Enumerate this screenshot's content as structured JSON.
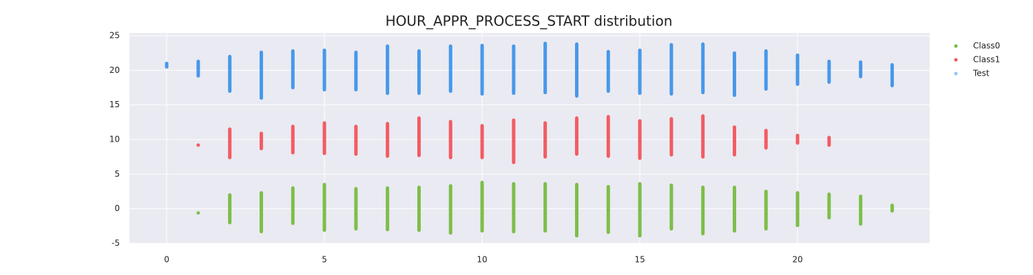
{
  "chart_data": {
    "type": "strip",
    "title": "HOUR_APPR_PROCESS_START distribution",
    "xlim": [
      -1.18,
      24.19
    ],
    "ylim": [
      -5,
      25.4
    ],
    "xticks": [
      0,
      5,
      10,
      15,
      20
    ],
    "yticks": [
      -5,
      0,
      5,
      10,
      15,
      20,
      25
    ],
    "grid": true,
    "legend": "outside-right",
    "series": [
      {
        "name": "Class0",
        "color": "#77bc3f",
        "x": [
          0,
          1,
          2,
          3,
          4,
          5,
          6,
          7,
          8,
          9,
          10,
          11,
          12,
          13,
          14,
          15,
          16,
          17,
          18,
          19,
          20,
          21,
          22,
          23
        ],
        "low": [
          null,
          -0.6,
          -2,
          -3.3,
          -2.1,
          -3.1,
          -2.9,
          -3,
          -3.1,
          -3.5,
          -3.2,
          -3.3,
          -3.2,
          -3.9,
          -3.4,
          -3.9,
          -2.9,
          -3.6,
          -3.2,
          -2.9,
          -2.4,
          -1.3,
          -2.2,
          -0.3
        ],
        "high": [
          null,
          -0.6,
          2,
          2.3,
          3,
          3.5,
          2.9,
          3,
          3.1,
          3.3,
          3.8,
          3.6,
          3.6,
          3.5,
          3.2,
          3.6,
          3.4,
          3.1,
          3.1,
          2.5,
          2.3,
          2.1,
          1.8,
          0.5
        ]
      },
      {
        "name": "Class1",
        "color": "#f2545b",
        "x": [
          0,
          1,
          2,
          3,
          4,
          5,
          6,
          7,
          8,
          9,
          10,
          11,
          12,
          13,
          14,
          15,
          16,
          17,
          18,
          19,
          20,
          21,
          22,
          23
        ],
        "low": [
          null,
          9.2,
          7.4,
          8.7,
          8.1,
          8,
          7.9,
          7.6,
          7.7,
          7.4,
          7.4,
          6.7,
          7.5,
          7.9,
          7.6,
          7.3,
          7.8,
          7.5,
          7.8,
          8.8,
          9.5,
          9.2,
          null,
          null
        ],
        "high": [
          null,
          9.2,
          11.5,
          10.9,
          11.9,
          12.4,
          11.9,
          12.3,
          13.1,
          12.6,
          12,
          12.8,
          12.4,
          13.1,
          13.3,
          12.7,
          13,
          13.4,
          11.8,
          11.3,
          10.6,
          10.3,
          null,
          null
        ]
      },
      {
        "name": "Test",
        "color": "#2a8ae8",
        "x": [
          0,
          1,
          2,
          3,
          4,
          5,
          6,
          7,
          8,
          9,
          10,
          11,
          12,
          13,
          14,
          15,
          16,
          17,
          18,
          19,
          20,
          21,
          22,
          23
        ],
        "low": [
          20.5,
          19.2,
          17,
          16,
          17.5,
          17.2,
          17.2,
          16.7,
          16.7,
          17,
          16.6,
          16.7,
          16.8,
          16.3,
          17,
          16.7,
          16.6,
          16.8,
          16.4,
          17.3,
          18,
          18.3,
          19.1,
          17.8
        ],
        "high": [
          21,
          21.3,
          22,
          22.6,
          22.8,
          22.9,
          22.6,
          23.5,
          22.8,
          23.5,
          23.6,
          23.5,
          23.9,
          23.8,
          22.7,
          22.9,
          23.7,
          23.8,
          22.5,
          22.8,
          22.2,
          21.3,
          21.2,
          20.8
        ]
      }
    ]
  }
}
